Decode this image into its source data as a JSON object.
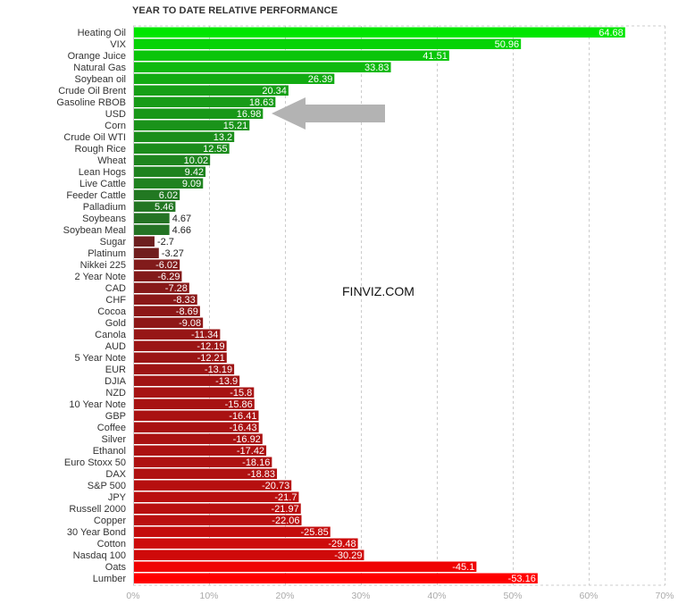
{
  "title": "YEAR TO DATE RELATIVE PERFORMANCE",
  "watermark": "FINVIZ.COM",
  "chart_data": {
    "type": "bar",
    "orientation": "horizontal",
    "xlim": [
      0,
      70
    ],
    "x_ticks": [
      0,
      10,
      20,
      30,
      40,
      50,
      60,
      70
    ],
    "x_tick_labels": [
      "0%",
      "10%",
      "20%",
      "30%",
      "40%",
      "50%",
      "60%",
      "70%"
    ],
    "value_format": "absolute value drawn as bar length; sign shown in label",
    "grid": "vertical dashed",
    "categories": [
      "Heating Oil",
      "VIX",
      "Orange Juice",
      "Natural Gas",
      "Soybean oil",
      "Crude Oil Brent",
      "Gasoline RBOB",
      "USD",
      "Corn",
      "Crude Oil WTI",
      "Rough Rice",
      "Wheat",
      "Lean Hogs",
      "Live Cattle",
      "Feeder Cattle",
      "Palladium",
      "Soybeans",
      "Soybean Meal",
      "Sugar",
      "Platinum",
      "Nikkei 225",
      "2 Year Note",
      "CAD",
      "CHF",
      "Cocoa",
      "Gold",
      "Canola",
      "AUD",
      "5 Year Note",
      "EUR",
      "DJIA",
      "NZD",
      "10 Year Note",
      "GBP",
      "Coffee",
      "Silver",
      "Ethanol",
      "Euro Stoxx 50",
      "DAX",
      "S&P 500",
      "JPY",
      "Russell 2000",
      "Copper",
      "30 Year Bond",
      "Cotton",
      "Nasdaq 100",
      "Oats",
      "Lumber"
    ],
    "values": [
      64.68,
      50.96,
      41.51,
      33.83,
      26.39,
      20.34,
      18.63,
      16.98,
      15.21,
      13.2,
      12.55,
      10.02,
      9.42,
      9.09,
      6.02,
      5.46,
      4.67,
      4.66,
      -2.7,
      -3.27,
      -6.02,
      -6.29,
      -7.28,
      -8.33,
      -8.69,
      -9.08,
      -11.34,
      -12.19,
      -12.21,
      -13.19,
      -13.9,
      -15.8,
      -15.86,
      -16.41,
      -16.43,
      -16.92,
      -17.42,
      -18.16,
      -18.83,
      -20.73,
      -21.7,
      -21.97,
      -22.06,
      -25.85,
      -29.48,
      -30.29,
      -45.1,
      -53.16
    ],
    "value_labels": [
      "64.68",
      "50.96",
      "41.51",
      "33.83",
      "26.39",
      "20.34",
      "18.63",
      "16.98",
      "15.21",
      "13.2",
      "12.55",
      "10.02",
      "9.42",
      "9.09",
      "6.02",
      "5.46",
      "4.67",
      "4.66",
      "-2.7",
      "-3.27",
      "-6.02",
      "-6.29",
      "-7.28",
      "-8.33",
      "-8.69",
      "-9.08",
      "-11.34",
      "-12.19",
      "-12.21",
      "-13.19",
      "-13.9",
      "-15.8",
      "-15.86",
      "-16.41",
      "-16.43",
      "-16.92",
      "-17.42",
      "-18.16",
      "-18.83",
      "-20.73",
      "-21.7",
      "-21.97",
      "-22.06",
      "-25.85",
      "-29.48",
      "-30.29",
      "-45.1",
      "-53.16"
    ],
    "annotation": {
      "type": "arrow",
      "points_to": "USD",
      "color": "#b3b3b3"
    },
    "colors": {
      "positive_max": "#00e600",
      "positive_min": "#2f4f2f",
      "negative_min": "#4a2626",
      "negative_max": "#ff0000",
      "grid": "#cccccc",
      "tick": "#aaaaaa"
    }
  }
}
